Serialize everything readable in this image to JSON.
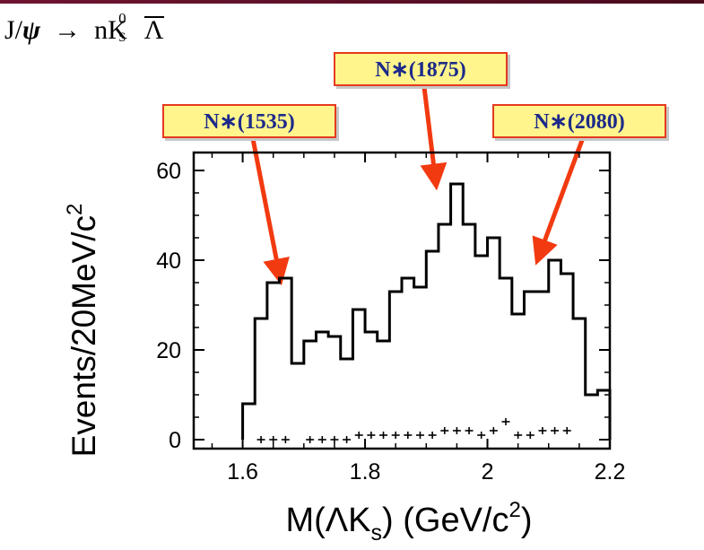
{
  "reaction": {
    "prefix": "J/",
    "psi": "ψ",
    "arrow": "→",
    "n": "nK",
    "ks_sup": "0",
    "ks_sub": "S",
    "lambda_bar": "Λ"
  },
  "labels": [
    {
      "text": "N∗(1535)",
      "mass": 1.66
    },
    {
      "text": "N∗(1875)",
      "mass": 1.915
    },
    {
      "text": "N∗(2080)",
      "mass": 2.085
    }
  ],
  "colors": {
    "background": "#5a0f24",
    "label_fill": "#fff58c",
    "label_border": "#e53a1e",
    "label_text": "#1d2a8a",
    "arrow": "#f23a10"
  },
  "chart_data": {
    "type": "histogram",
    "xlabel": "M(ΛK",
    "xlabel_sub": "s",
    "xlabel_unit": ") (GeV/c",
    "xlabel_sup": "2",
    "xlabel_end": ")",
    "ylabel": "Events/20MeV/c",
    "ylabel_sup": "2",
    "xlim": [
      1.52,
      2.2
    ],
    "ylim": [
      -2,
      64
    ],
    "x_ticks": [
      "1.6",
      "1.8",
      "2",
      "2.2"
    ],
    "x_tick_values": [
      1.6,
      1.8,
      2.0,
      2.2
    ],
    "y_ticks": [
      "0",
      "20",
      "40",
      "60"
    ],
    "y_tick_values": [
      0,
      20,
      40,
      60
    ],
    "bin_width": 0.02,
    "bin_edges_start": 1.6,
    "series": [
      {
        "style": "histogram",
        "values": [
          8,
          27,
          35,
          36,
          17,
          22,
          24,
          23,
          18,
          29,
          24,
          22,
          33,
          36,
          34,
          42,
          48,
          57,
          48,
          41,
          45,
          36,
          28,
          33,
          33,
          40,
          37,
          27,
          10,
          11
        ]
      },
      {
        "style": "crosses",
        "x": [
          1.63,
          1.65,
          1.67,
          1.71,
          1.73,
          1.75,
          1.77,
          1.79,
          1.81,
          1.83,
          1.85,
          1.87,
          1.89,
          1.91,
          1.93,
          1.95,
          1.97,
          1.99,
          2.01,
          2.03,
          2.05,
          2.07,
          2.09,
          2.11,
          2.13
        ],
        "values": [
          0,
          0,
          0,
          0,
          0,
          0,
          0,
          1,
          1,
          1,
          1,
          1,
          1,
          1,
          2,
          2,
          2,
          1,
          2,
          4,
          1,
          1,
          2,
          2,
          2
        ]
      }
    ]
  }
}
